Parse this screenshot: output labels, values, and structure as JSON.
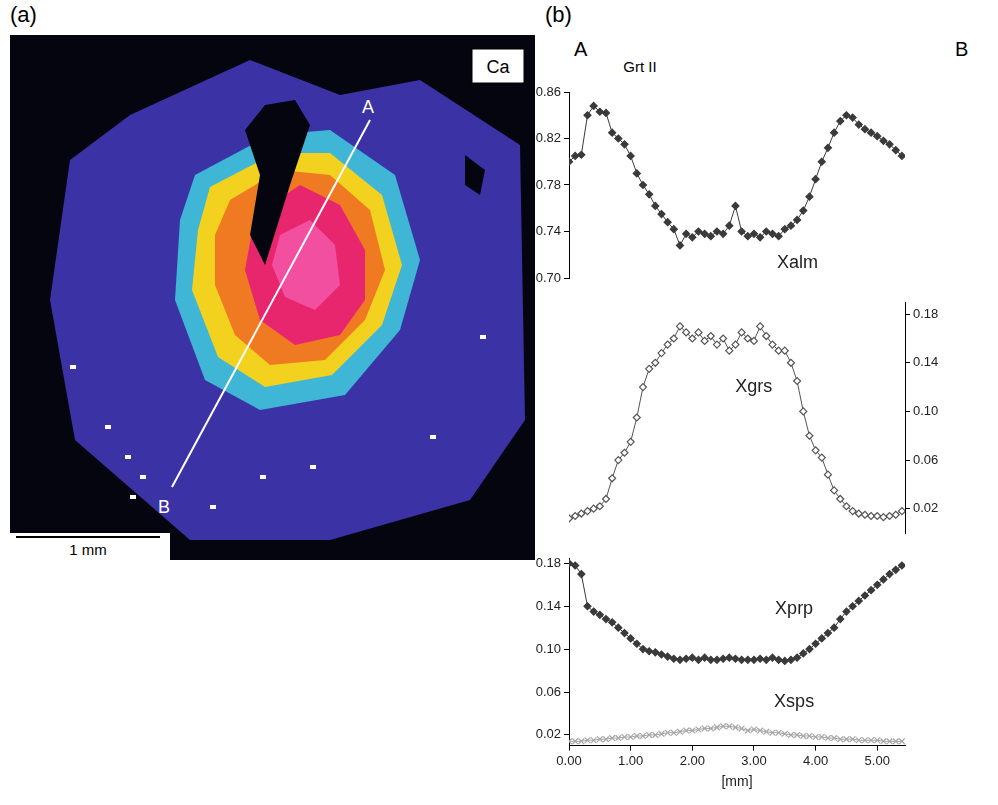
{
  "panels": {
    "a": "(a)",
    "b": "(b)"
  },
  "map": {
    "element": "Ca",
    "line_start": "A",
    "line_end": "B",
    "scale_bar": "1 mm"
  },
  "profile": {
    "title": "Grt II",
    "start": "A",
    "end": "B"
  },
  "chart_data": [
    {
      "type": "line",
      "grid": false,
      "tick_labels": "y",
      "x": [
        0,
        0.1,
        0.2,
        0.3,
        0.4,
        0.5,
        0.6,
        0.7,
        0.8,
        0.9,
        1,
        1.1,
        1.2,
        1.3,
        1.4,
        1.5,
        1.6,
        1.7,
        1.8,
        1.9,
        2,
        2.1,
        2.2,
        2.3,
        2.4,
        2.5,
        2.6,
        2.7,
        2.8,
        2.9,
        3,
        3.1,
        3.2,
        3.3,
        3.4,
        3.5,
        3.6,
        3.7,
        3.8,
        3.9,
        4,
        4.1,
        4.2,
        4.3,
        4.4,
        4.5,
        4.6,
        4.7,
        4.8,
        4.9,
        5,
        5.1,
        5.2,
        5.3,
        5.4
      ],
      "xlim": [
        0,
        5.45
      ],
      "ylim": [
        0.7,
        0.86
      ],
      "yticks": [
        {
          "value": 0.7,
          "label": "0.70"
        },
        0.74,
        0.78,
        0.82,
        0.86
      ],
      "series": [
        {
          "name": "Xalm",
          "color": "#3a3a3a",
          "marker": "diamond",
          "line_style": "solid",
          "values": [
            0.8,
            0.805,
            0.806,
            0.84,
            0.848,
            0.843,
            0.842,
            0.825,
            0.82,
            0.815,
            0.805,
            0.79,
            0.78,
            0.772,
            0.762,
            0.755,
            0.748,
            0.742,
            0.728,
            0.738,
            0.735,
            0.74,
            0.738,
            0.736,
            0.74,
            0.738,
            0.745,
            0.762,
            0.74,
            0.736,
            0.738,
            0.735,
            0.74,
            0.738,
            0.736,
            0.742,
            0.745,
            0.75,
            0.758,
            0.77,
            0.785,
            0.8,
            0.812,
            0.825,
            0.835,
            0.84,
            0.838,
            0.832,
            0.828,
            0.825,
            0.822,
            0.818,
            0.815,
            0.81,
            0.805
          ]
        }
      ]
    },
    {
      "type": "line",
      "grid": false,
      "tick_labels": "y",
      "x": [
        0,
        0.1,
        0.2,
        0.3,
        0.4,
        0.5,
        0.6,
        0.7,
        0.8,
        0.9,
        1,
        1.1,
        1.2,
        1.3,
        1.4,
        1.5,
        1.6,
        1.7,
        1.8,
        1.9,
        2,
        2.1,
        2.2,
        2.3,
        2.4,
        2.5,
        2.6,
        2.7,
        2.8,
        2.9,
        3,
        3.1,
        3.2,
        3.3,
        3.4,
        3.5,
        3.6,
        3.7,
        3.8,
        3.9,
        4,
        4.1,
        4.2,
        4.3,
        4.4,
        4.5,
        4.6,
        4.7,
        4.8,
        4.9,
        5,
        5.1,
        5.2,
        5.3,
        5.4
      ],
      "xlim": [
        0,
        5.45
      ],
      "y2lim": [
        0,
        0.19
      ],
      "y2ticks": [
        0.02,
        0.06,
        {
          "value": 0.1,
          "label": "0.10"
        },
        0.14,
        0.18
      ],
      "series": [
        {
          "name": "Xgrs",
          "color": "#555555",
          "marker": "open_diamond",
          "line_style": "solid",
          "axis": "y2",
          "values": [
            0.012,
            0.014,
            0.016,
            0.018,
            0.02,
            0.022,
            0.028,
            0.045,
            0.06,
            0.066,
            0.075,
            0.095,
            0.12,
            0.135,
            0.14,
            0.148,
            0.155,
            0.16,
            0.17,
            0.165,
            0.16,
            0.165,
            0.158,
            0.162,
            0.155,
            0.16,
            0.15,
            0.155,
            0.165,
            0.16,
            0.158,
            0.17,
            0.162,
            0.155,
            0.15,
            0.15,
            0.14,
            0.125,
            0.1,
            0.08,
            0.068,
            0.062,
            0.048,
            0.035,
            0.028,
            0.022,
            0.018,
            0.016,
            0.015,
            0.014,
            0.014,
            0.013,
            0.014,
            0.015,
            0.018
          ]
        }
      ]
    },
    {
      "type": "line",
      "grid": false,
      "x_label": "[mm]",
      "x": [
        0,
        0.1,
        0.2,
        0.3,
        0.4,
        0.5,
        0.6,
        0.7,
        0.8,
        0.9,
        1,
        1.1,
        1.2,
        1.3,
        1.4,
        1.5,
        1.6,
        1.7,
        1.8,
        1.9,
        2,
        2.1,
        2.2,
        2.3,
        2.4,
        2.5,
        2.6,
        2.7,
        2.8,
        2.9,
        3,
        3.1,
        3.2,
        3.3,
        3.4,
        3.5,
        3.6,
        3.7,
        3.8,
        3.9,
        4,
        4.1,
        4.2,
        4.3,
        4.4,
        4.5,
        4.6,
        4.7,
        4.8,
        4.9,
        5,
        5.1,
        5.2,
        5.3,
        5.4
      ],
      "xlim": [
        0,
        5.45
      ],
      "xticks": [
        {
          "value": 0,
          "label": "0.00"
        },
        {
          "value": 1,
          "label": "1.00"
        },
        {
          "value": 2,
          "label": "2.00"
        },
        {
          "value": 3,
          "label": "3.00"
        },
        {
          "value": 4,
          "label": "4.00"
        },
        {
          "value": 5,
          "label": "5.00"
        }
      ],
      "ylim": [
        0.01,
        0.185
      ],
      "yticks": [
        0.02,
        0.06,
        {
          "value": 0.1,
          "label": "0.10"
        },
        0.14,
        0.18
      ],
      "series": [
        {
          "name": "Xprp",
          "color": "#3a3a3a",
          "marker": "diamond",
          "line_style": "solid",
          "values": [
            0.18,
            0.178,
            0.17,
            0.14,
            0.135,
            0.132,
            0.128,
            0.125,
            0.12,
            0.115,
            0.11,
            0.105,
            0.1,
            0.098,
            0.097,
            0.095,
            0.093,
            0.091,
            0.09,
            0.091,
            0.092,
            0.09,
            0.092,
            0.09,
            0.09,
            0.091,
            0.092,
            0.091,
            0.09,
            0.09,
            0.09,
            0.091,
            0.09,
            0.092,
            0.09,
            0.089,
            0.09,
            0.092,
            0.096,
            0.1,
            0.105,
            0.11,
            0.115,
            0.12,
            0.128,
            0.135,
            0.14,
            0.145,
            0.15,
            0.155,
            0.16,
            0.165,
            0.17,
            0.174,
            0.178
          ]
        },
        {
          "name": "Xsps",
          "color": "#a6a6a6",
          "marker": "cross",
          "line_style": "solid",
          "values": [
            0.014,
            0.014,
            0.014,
            0.015,
            0.015,
            0.016,
            0.016,
            0.017,
            0.017,
            0.018,
            0.018,
            0.019,
            0.019,
            0.02,
            0.02,
            0.021,
            0.022,
            0.022,
            0.023,
            0.024,
            0.024,
            0.025,
            0.026,
            0.026,
            0.027,
            0.028,
            0.028,
            0.027,
            0.026,
            0.024,
            0.025,
            0.024,
            0.023,
            0.022,
            0.022,
            0.021,
            0.02,
            0.02,
            0.019,
            0.019,
            0.018,
            0.018,
            0.017,
            0.017,
            0.016,
            0.016,
            0.016,
            0.015,
            0.015,
            0.015,
            0.015,
            0.014,
            0.014,
            0.014,
            0.014
          ]
        }
      ]
    }
  ]
}
